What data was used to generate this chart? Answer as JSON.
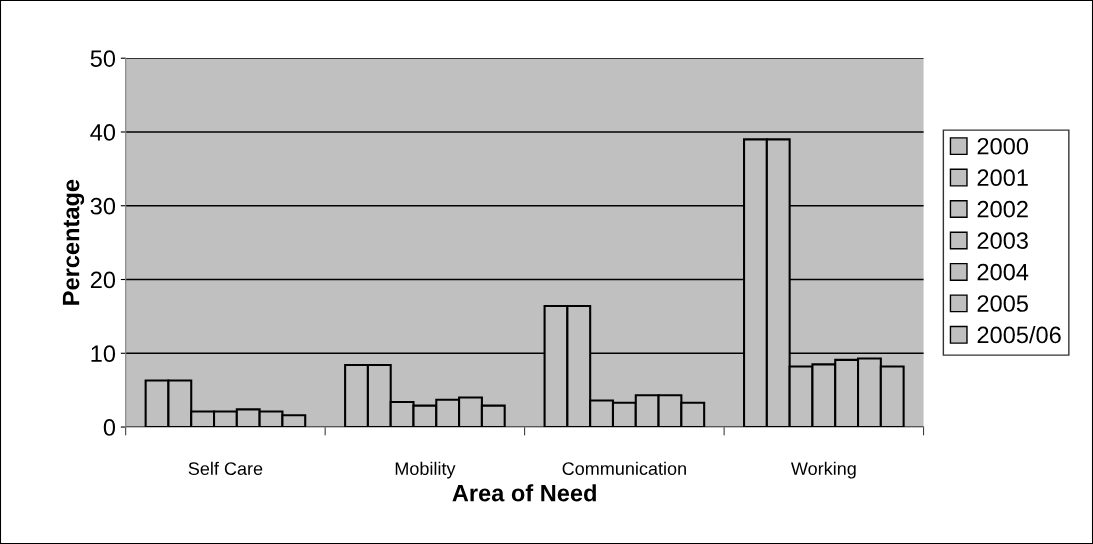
{
  "chart_data": {
    "type": "bar",
    "xlabel": "Area of Need",
    "ylabel": "Percentage",
    "categories": [
      "Self Care",
      "Mobility",
      "Communication",
      "Working"
    ],
    "series": [
      {
        "name": "2000",
        "color": "#c0c0c0",
        "values": [
          6.3,
          8.4,
          16.4,
          39.0
        ]
      },
      {
        "name": "2001",
        "color": "#c0c0c0",
        "values": [
          6.3,
          8.4,
          16.4,
          39.0
        ]
      },
      {
        "name": "2002",
        "color": "#c0c0c0",
        "values": [
          2.1,
          3.4,
          3.6,
          8.2
        ]
      },
      {
        "name": "2003",
        "color": "#c0c0c0",
        "values": [
          2.1,
          2.9,
          3.3,
          8.5
        ]
      },
      {
        "name": "2004",
        "color": "#c0c0c0",
        "values": [
          2.4,
          3.7,
          4.3,
          9.1
        ]
      },
      {
        "name": "2005",
        "color": "#c0c0c0",
        "values": [
          2.1,
          4.0,
          4.3,
          9.3
        ]
      },
      {
        "name": "2005/06",
        "color": "#c0c0c0",
        "values": [
          1.6,
          2.9,
          3.3,
          8.2
        ]
      }
    ],
    "ylim": [
      0,
      50
    ],
    "yticks": [
      0,
      10,
      20,
      30,
      40,
      50
    ],
    "grid": "y",
    "legend": "right"
  }
}
